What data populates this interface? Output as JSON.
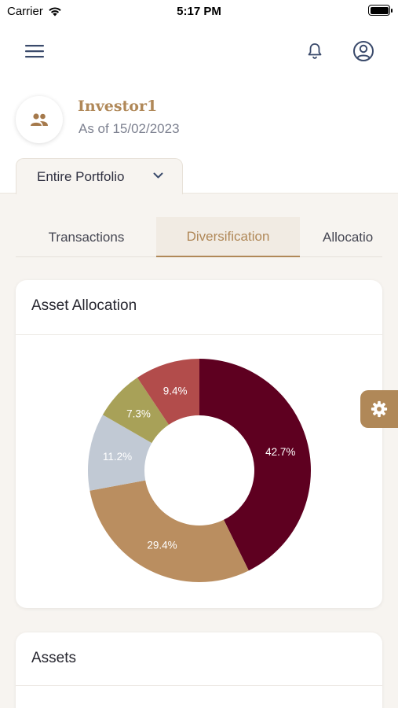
{
  "status_bar": {
    "carrier": "Carrier",
    "time": "5:17 PM"
  },
  "nav": {
    "menu_icon": "hamburger-icon",
    "bell_icon": "bell-icon",
    "user_icon": "user-circle-icon"
  },
  "profile": {
    "avatar_icon": "people-icon",
    "name": "Investor1",
    "as_of": "As of 15/02/2023"
  },
  "portfolio_selector": {
    "label": "Entire Portfolio"
  },
  "tabs": [
    {
      "label": "Transactions",
      "active": false
    },
    {
      "label": "Diversification",
      "active": true
    },
    {
      "label": "Allocatio",
      "active": false
    }
  ],
  "cards": {
    "asset_allocation_title": "Asset Allocation",
    "assets_title": "Assets"
  },
  "chart_data": {
    "type": "pie",
    "donut": true,
    "slices": [
      {
        "label": "42.7%",
        "value": 42.7,
        "color": "#5e0020"
      },
      {
        "label": "29.4%",
        "value": 29.4,
        "color": "#ba8e60"
      },
      {
        "label": "11.2%",
        "value": 11.2,
        "color": "#c1c9d4"
      },
      {
        "label": "7.3%",
        "value": 7.3,
        "color": "#a8a158"
      },
      {
        "label": "9.4%",
        "value": 9.4,
        "color": "#b24c4b"
      }
    ]
  },
  "colors": {
    "accent": "#b08858",
    "background": "#f7f4f0"
  }
}
